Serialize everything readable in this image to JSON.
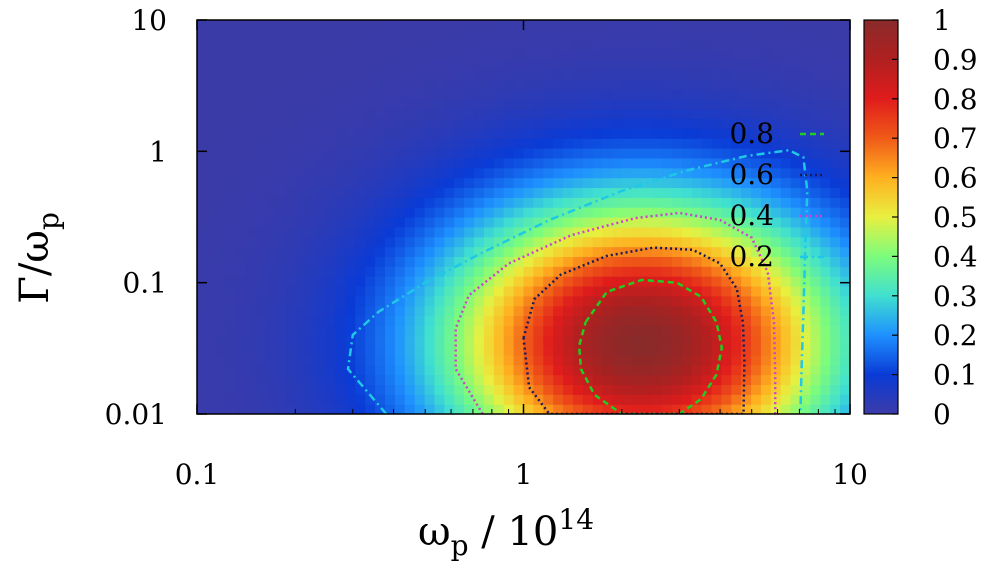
{
  "chart_data": {
    "type": "heatmap",
    "title": "",
    "xlabel": {
      "base": "ω",
      "sub": "p",
      "rest": " / 10",
      "sup": "14"
    },
    "ylabel": {
      "lead": "Γ/ω",
      "sub": "p"
    },
    "x_scale": "log",
    "y_scale": "log",
    "xlim": [
      0.1,
      10
    ],
    "ylim": [
      0.01,
      10
    ],
    "x_ticks": [
      {
        "value": 0.1,
        "label": "0.1"
      },
      {
        "value": 1,
        "label": "1"
      },
      {
        "value": 10,
        "label": "10"
      }
    ],
    "y_ticks": [
      {
        "value": 0.01,
        "label": "0.01"
      },
      {
        "value": 0.1,
        "label": "0.1"
      },
      {
        "value": 1,
        "label": "1"
      },
      {
        "value": 10,
        "label": "10"
      }
    ],
    "colorbar": {
      "min": 0,
      "max": 1,
      "ticks": [
        {
          "value": 0,
          "label": "0"
        },
        {
          "value": 0.1,
          "label": "0.1"
        },
        {
          "value": 0.2,
          "label": "0.2"
        },
        {
          "value": 0.3,
          "label": "0.3"
        },
        {
          "value": 0.4,
          "label": "0.4"
        },
        {
          "value": 0.5,
          "label": "0.5"
        },
        {
          "value": 0.6,
          "label": "0.6"
        },
        {
          "value": 0.7,
          "label": "0.7"
        },
        {
          "value": 0.8,
          "label": "0.8"
        },
        {
          "value": 0.9,
          "label": "0.9"
        },
        {
          "value": 1,
          "label": "1"
        }
      ],
      "colors": [
        "#3b3ba8",
        "#0a3bd6",
        "#1e90ff",
        "#40e0d0",
        "#7cfc7c",
        "#e8f040",
        "#ffb020",
        "#f05a18",
        "#e01c1c",
        "#b02020",
        "#8a2a2a"
      ]
    },
    "field": {
      "peak_value": 1,
      "peak_x": 2.3,
      "peak_y": 0.035,
      "x_spread_decades": 0.42,
      "y_spread_decades": 0.75
    },
    "contours": [
      {
        "level": 0.8,
        "label": "0.8",
        "color": "#22cc22",
        "style": "dashed",
        "points": [
          [
            1.55,
            0.05
          ],
          [
            1.8,
            0.085
          ],
          [
            2.3,
            0.105
          ],
          [
            2.95,
            0.1
          ],
          [
            3.5,
            0.078
          ],
          [
            3.9,
            0.05
          ],
          [
            4.05,
            0.032
          ],
          [
            3.9,
            0.02
          ],
          [
            3.5,
            0.013
          ],
          [
            3.0,
            0.01
          ],
          [
            2.0,
            0.01
          ],
          [
            1.65,
            0.014
          ],
          [
            1.5,
            0.022
          ],
          [
            1.48,
            0.033
          ],
          [
            1.55,
            0.05
          ]
        ]
      },
      {
        "level": 0.6,
        "label": "0.6",
        "color": "#1a1a5a",
        "style": "dotted",
        "points": [
          [
            1.0,
            0.038
          ],
          [
            1.08,
            0.075
          ],
          [
            1.3,
            0.115
          ],
          [
            1.8,
            0.16
          ],
          [
            2.5,
            0.185
          ],
          [
            3.3,
            0.178
          ],
          [
            4.0,
            0.14
          ],
          [
            4.5,
            0.09
          ],
          [
            4.7,
            0.05
          ],
          [
            4.75,
            0.025
          ],
          [
            4.72,
            0.01
          ],
          [
            1.2,
            0.01
          ],
          [
            1.04,
            0.016
          ],
          [
            1.0,
            0.038
          ]
        ]
      },
      {
        "level": 0.4,
        "label": "0.4",
        "color": "#cc44cc",
        "style": "dotted",
        "points": [
          [
            0.75,
            0.01
          ],
          [
            0.62,
            0.022
          ],
          [
            0.62,
            0.045
          ],
          [
            0.68,
            0.08
          ],
          [
            0.9,
            0.14
          ],
          [
            1.4,
            0.23
          ],
          [
            2.2,
            0.31
          ],
          [
            3.0,
            0.34
          ],
          [
            4.0,
            0.3
          ],
          [
            5.0,
            0.22
          ],
          [
            5.6,
            0.12
          ],
          [
            5.85,
            0.05
          ],
          [
            5.9,
            0.02
          ],
          [
            5.9,
            0.01
          ]
        ]
      },
      {
        "level": 0.2,
        "label": "0.2",
        "color": "#1ec8e6",
        "style": "dashdot",
        "points": [
          [
            0.38,
            0.01
          ],
          [
            0.29,
            0.022
          ],
          [
            0.3,
            0.04
          ],
          [
            0.36,
            0.06
          ],
          [
            0.5,
            0.1
          ],
          [
            0.75,
            0.17
          ],
          [
            1.2,
            0.3
          ],
          [
            2.0,
            0.5
          ],
          [
            3.2,
            0.72
          ],
          [
            4.8,
            0.92
          ],
          [
            6.5,
            1.02
          ],
          [
            7.2,
            0.9
          ],
          [
            7.4,
            0.5
          ],
          [
            7.3,
            0.2
          ],
          [
            7.2,
            0.06
          ],
          [
            7.1,
            0.02
          ],
          [
            7.05,
            0.01
          ]
        ]
      }
    ],
    "legend_position": "top-right",
    "grid": false
  }
}
